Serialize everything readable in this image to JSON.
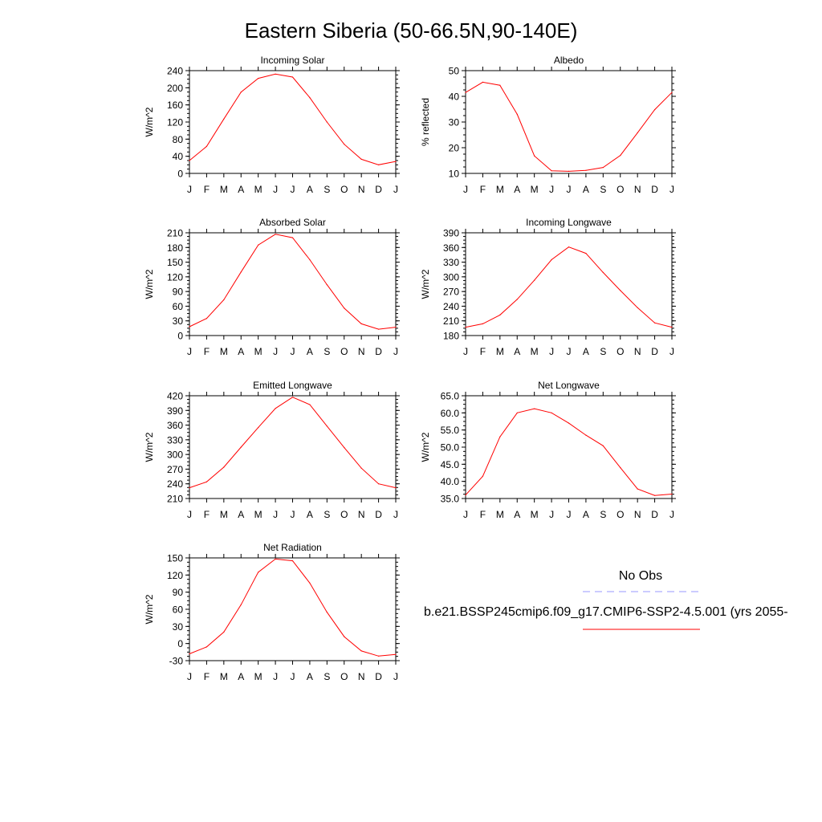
{
  "figure": {
    "title": "Eastern Siberia (50-66.5N,90-140E)"
  },
  "colors": {
    "model": "#ff0000",
    "obs": "#9999ff",
    "axis": "#000000"
  },
  "legend": {
    "obs_label": "No Obs",
    "model_label": "b.e21.BSSP245cmip6.f09_g17.CMIP6-SSP2-4.5.001 (yrs 2055-"
  },
  "chart_data": [
    {
      "id": "incoming-solar",
      "type": "line",
      "title": "Incoming Solar",
      "ylabel": "W/m^2",
      "categories": [
        "J",
        "F",
        "M",
        "A",
        "M",
        "J",
        "J",
        "A",
        "S",
        "O",
        "N",
        "D",
        "J"
      ],
      "ylim": [
        0,
        240
      ],
      "yticks": [
        0,
        40,
        80,
        120,
        160,
        200,
        240
      ],
      "ytick_labels": [
        "0",
        "40",
        "80",
        "120",
        "160",
        "200",
        "240"
      ],
      "series": [
        {
          "values": [
            30,
            63,
            127,
            190,
            222,
            232,
            225,
            177,
            120,
            68,
            33,
            20,
            28
          ]
        }
      ]
    },
    {
      "id": "albedo",
      "type": "line",
      "title": "Albedo",
      "ylabel": "% reflected",
      "categories": [
        "J",
        "F",
        "M",
        "A",
        "M",
        "J",
        "J",
        "A",
        "S",
        "O",
        "N",
        "D",
        "J"
      ],
      "ylim": [
        10,
        50
      ],
      "yticks": [
        10,
        20,
        30,
        40,
        50
      ],
      "ytick_labels": [
        "10",
        "20",
        "30",
        "40",
        "50"
      ],
      "series": [
        {
          "values": [
            41.5,
            45.5,
            44.3,
            33,
            16.8,
            11,
            10.8,
            11.2,
            12.3,
            17,
            25.8,
            34.8,
            41.5
          ]
        }
      ]
    },
    {
      "id": "absorbed-solar",
      "type": "line",
      "title": "Absorbed Solar",
      "ylabel": "W/m^2",
      "categories": [
        "J",
        "F",
        "M",
        "A",
        "M",
        "J",
        "J",
        "A",
        "S",
        "O",
        "N",
        "D",
        "J"
      ],
      "ylim": [
        0,
        210
      ],
      "yticks": [
        0,
        30,
        60,
        90,
        120,
        150,
        180,
        210
      ],
      "ytick_labels": [
        "0",
        "30",
        "60",
        "90",
        "120",
        "150",
        "180",
        "210"
      ],
      "series": [
        {
          "values": [
            18,
            35,
            73,
            130,
            185,
            207,
            200,
            155,
            104,
            56,
            24,
            13,
            17
          ]
        }
      ]
    },
    {
      "id": "incoming-longwave",
      "type": "line",
      "title": "Incoming Longwave",
      "ylabel": "W/m^2",
      "categories": [
        "J",
        "F",
        "M",
        "A",
        "M",
        "J",
        "J",
        "A",
        "S",
        "O",
        "N",
        "D",
        "J"
      ],
      "ylim": [
        180,
        390
      ],
      "yticks": [
        180,
        210,
        240,
        270,
        300,
        330,
        360,
        390
      ],
      "ytick_labels": [
        "180",
        "210",
        "240",
        "270",
        "300",
        "330",
        "360",
        "390"
      ],
      "series": [
        {
          "values": [
            197,
            204,
            222,
            254,
            293,
            335,
            361,
            348,
            309,
            272,
            237,
            206,
            197
          ]
        }
      ]
    },
    {
      "id": "emitted-longwave",
      "type": "line",
      "title": "Emitted Longwave",
      "ylabel": "W/m^2",
      "categories": [
        "J",
        "F",
        "M",
        "A",
        "M",
        "J",
        "J",
        "A",
        "S",
        "O",
        "N",
        "D",
        "J"
      ],
      "ylim": [
        210,
        420
      ],
      "yticks": [
        210,
        240,
        270,
        300,
        330,
        360,
        390,
        420
      ],
      "ytick_labels": [
        "210",
        "240",
        "270",
        "300",
        "330",
        "360",
        "390",
        "420"
      ],
      "series": [
        {
          "values": [
            232,
            244,
            274,
            315,
            355,
            394,
            417,
            402,
            358,
            314,
            272,
            240,
            232
          ]
        }
      ]
    },
    {
      "id": "net-longwave",
      "type": "line",
      "title": "Net Longwave",
      "ylabel": "W/m^2",
      "categories": [
        "J",
        "F",
        "M",
        "A",
        "M",
        "J",
        "J",
        "A",
        "S",
        "O",
        "N",
        "D",
        "J"
      ],
      "ylim": [
        35,
        65
      ],
      "yticks": [
        35,
        40,
        45,
        50,
        55,
        60,
        65
      ],
      "ytick_labels": [
        "35.0",
        "40.0",
        "45.0",
        "50.0",
        "55.0",
        "60.0",
        "65.0"
      ],
      "series": [
        {
          "values": [
            36,
            41.5,
            53,
            60,
            61.2,
            60,
            57,
            53.5,
            50.4,
            44,
            37.8,
            35.9,
            36.3
          ]
        }
      ]
    },
    {
      "id": "net-radiation",
      "type": "line",
      "title": "Net Radiation",
      "ylabel": "W/m^2",
      "categories": [
        "J",
        "F",
        "M",
        "A",
        "M",
        "J",
        "J",
        "A",
        "S",
        "O",
        "N",
        "D",
        "J"
      ],
      "ylim": [
        -30,
        150
      ],
      "yticks": [
        -30,
        0,
        30,
        60,
        90,
        120,
        150
      ],
      "ytick_labels": [
        "-30",
        "0",
        "30",
        "60",
        "90",
        "120",
        "150"
      ],
      "series": [
        {
          "values": [
            -18,
            -6,
            20,
            68,
            125,
            148,
            145,
            106,
            55,
            12,
            -13,
            -22,
            -19
          ]
        }
      ]
    }
  ]
}
